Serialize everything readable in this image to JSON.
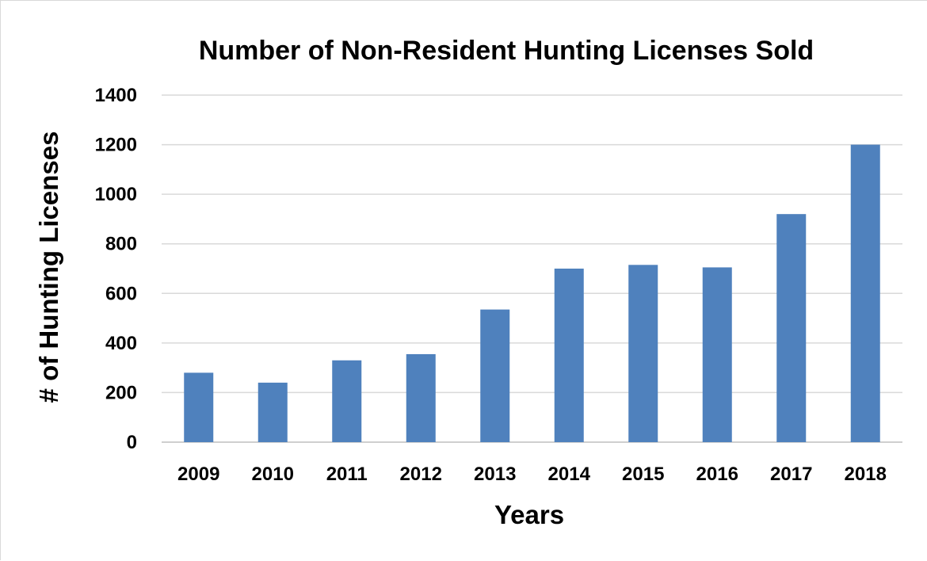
{
  "chart_data": {
    "type": "bar",
    "title": "Number of Non-Resident Hunting Licenses Sold",
    "xlabel": "Years",
    "ylabel": "# of Hunting Licenses",
    "categories": [
      "2009",
      "2010",
      "2011",
      "2012",
      "2013",
      "2014",
      "2015",
      "2016",
      "2017",
      "2018"
    ],
    "values": [
      280,
      240,
      330,
      355,
      535,
      700,
      715,
      705,
      920,
      1200
    ],
    "ylim": [
      0,
      1400
    ],
    "yticks": [
      "0",
      "200",
      "400",
      "600",
      "800",
      "1000",
      "1200",
      "1400"
    ],
    "grid": true,
    "legend": "none",
    "colors": {
      "bar": "#4f81bd",
      "grid": "#d9d9d9"
    }
  }
}
